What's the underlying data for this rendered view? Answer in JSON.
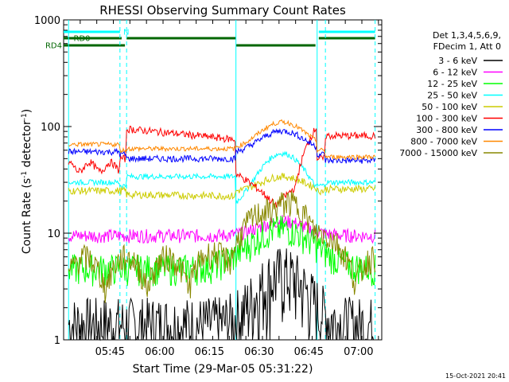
{
  "chart_data": {
    "type": "line",
    "title": "RHESSI Observing Summary Count Rates",
    "xlabel": "Start Time (29-Mar-05 05:31:22)",
    "ylabel_main": "Count Rate (s",
    "ylabel_sup1": "-1",
    "ylabel_mid": " detector",
    "ylabel_sup2": "-1",
    "ylabel_end": ")",
    "y_scale": "log",
    "ylim": [
      1,
      1000
    ],
    "x_unit": "minutes since 05:31:22",
    "xlim": [
      0,
      96
    ],
    "x_ticks": [
      {
        "x": 14,
        "label": "05:45"
      },
      {
        "x": 29,
        "label": "06:00"
      },
      {
        "x": 44,
        "label": "06:15"
      },
      {
        "x": 59,
        "label": "06:30"
      },
      {
        "x": 74,
        "label": "06:45"
      },
      {
        "x": 89,
        "label": "07:00"
      }
    ],
    "y_ticks": [
      {
        "v": 1,
        "label": "1"
      },
      {
        "v": 10,
        "label": "10"
      },
      {
        "v": 100,
        "label": "100"
      },
      {
        "v": 1000,
        "label": "1000"
      }
    ],
    "legend_header": [
      "Det 1,3,4,5,6,9,",
      "FDecim 1, Att 0"
    ],
    "legend_position": "right",
    "series": [
      {
        "name": "3 - 6 keV",
        "color": "#000000"
      },
      {
        "name": "6 - 12 keV",
        "color": "#ff00ff"
      },
      {
        "name": "12 - 25 keV",
        "color": "#00ff00"
      },
      {
        "name": "25 - 50 keV",
        "color": "#00ffff"
      },
      {
        "name": "50 - 100 keV",
        "color": "#cccc00"
      },
      {
        "name": "100 - 300 keV",
        "color": "#ff0000"
      },
      {
        "name": "300 - 800 keV",
        "color": "#0000ff"
      },
      {
        "name": "800 - 7000 keV",
        "color": "#ff8800"
      },
      {
        "name": "7000 - 15000 keV",
        "color": "#888800"
      }
    ],
    "flags": [
      {
        "label": "N",
        "color": "#00ffff",
        "segments": [
          [
            0,
            17
          ],
          [
            77,
            94
          ]
        ]
      },
      {
        "label": "RD0",
        "color": "#006600",
        "segments": [
          [
            0,
            17.5
          ],
          [
            19,
            52
          ],
          [
            77,
            94
          ]
        ]
      },
      {
        "label": "RD4",
        "color": "#006600",
        "segments": [
          [
            0,
            18.5
          ],
          [
            52,
            76
          ]
        ]
      }
    ],
    "vlines_solid": [
      1.5,
      52,
      76.5
    ],
    "vlines_dashed": [
      17,
      19,
      79,
      94
    ],
    "footer_date": "15-Oct-2021 20:41"
  }
}
